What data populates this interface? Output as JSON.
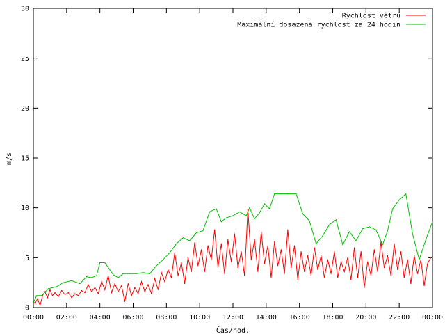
{
  "chart_data": {
    "type": "line",
    "title": "",
    "xlabel": "Čas/hod.",
    "ylabel": "m/s",
    "ylim": [
      0,
      30
    ],
    "yticks": [
      0,
      5,
      10,
      15,
      20,
      25,
      30
    ],
    "xlim": [
      0,
      24
    ],
    "xticks": [
      {
        "value": 0,
        "label": "00:00"
      },
      {
        "value": 2,
        "label": "02:00"
      },
      {
        "value": 4,
        "label": "04:00"
      },
      {
        "value": 6,
        "label": "06:00"
      },
      {
        "value": 8,
        "label": "08:00"
      },
      {
        "value": 10,
        "label": "10:00"
      },
      {
        "value": 12,
        "label": "12:00"
      },
      {
        "value": 14,
        "label": "14:00"
      },
      {
        "value": 16,
        "label": "16:00"
      },
      {
        "value": 18,
        "label": "18:00"
      },
      {
        "value": 20,
        "label": "20:00"
      },
      {
        "value": 22,
        "label": "22:00"
      },
      {
        "value": 24,
        "label": "00:00"
      }
    ],
    "grid": false,
    "legend_position": "top-right",
    "series": [
      {
        "name": "Rychlost větru",
        "color": "#ff0000",
        "x": [
          0,
          0.1,
          0.25,
          0.4,
          0.55,
          0.7,
          0.85,
          1.0,
          1.15,
          1.3,
          1.5,
          1.7,
          1.9,
          2.1,
          2.3,
          2.5,
          2.7,
          2.9,
          3.1,
          3.3,
          3.5,
          3.7,
          3.9,
          4.1,
          4.3,
          4.5,
          4.7,
          4.9,
          5.1,
          5.3,
          5.5,
          5.7,
          5.9,
          6.1,
          6.3,
          6.5,
          6.7,
          6.9,
          7.1,
          7.3,
          7.5,
          7.7,
          7.9,
          8.1,
          8.3,
          8.5,
          8.7,
          8.9,
          9.1,
          9.3,
          9.5,
          9.7,
          9.9,
          10.1,
          10.3,
          10.5,
          10.7,
          10.9,
          11.1,
          11.3,
          11.5,
          11.7,
          11.9,
          12.1,
          12.3,
          12.5,
          12.7,
          12.9,
          13.1,
          13.3,
          13.5,
          13.7,
          13.9,
          14.1,
          14.3,
          14.5,
          14.7,
          14.9,
          15.1,
          15.3,
          15.5,
          15.7,
          15.9,
          16.1,
          16.3,
          16.5,
          16.7,
          16.9,
          17.1,
          17.3,
          17.5,
          17.7,
          17.9,
          18.1,
          18.3,
          18.5,
          18.7,
          18.9,
          19.1,
          19.3,
          19.5,
          19.7,
          19.9,
          20.1,
          20.3,
          20.5,
          20.7,
          20.9,
          21.1,
          21.3,
          21.5,
          21.7,
          21.9,
          22.1,
          22.3,
          22.5,
          22.7,
          22.9,
          23.1,
          23.3,
          23.5,
          23.7,
          23.9
        ],
        "values": [
          0.6,
          0.4,
          0.9,
          0.2,
          1.2,
          1.6,
          1.0,
          1.8,
          1.2,
          1.5,
          1.1,
          1.7,
          1.3,
          1.5,
          1.0,
          1.4,
          1.2,
          1.7,
          1.5,
          2.3,
          1.6,
          2.0,
          1.4,
          2.6,
          1.8,
          3.2,
          1.5,
          2.4,
          1.6,
          2.2,
          0.6,
          2.4,
          1.2,
          2.0,
          1.4,
          2.6,
          1.6,
          2.3,
          1.4,
          2.9,
          1.8,
          3.5,
          2.6,
          3.8,
          3.0,
          5.5,
          3.2,
          4.5,
          2.4,
          5.0,
          3.6,
          6.5,
          4.2,
          5.8,
          3.6,
          6.2,
          4.8,
          7.8,
          4.0,
          6.4,
          3.4,
          6.8,
          4.6,
          7.4,
          4.0,
          5.6,
          3.2,
          9.8,
          4.8,
          6.8,
          3.6,
          7.6,
          4.4,
          6.2,
          3.0,
          6.6,
          4.2,
          5.8,
          3.4,
          7.8,
          4.0,
          6.2,
          2.8,
          5.6,
          3.6,
          5.2,
          3.2,
          6.0,
          3.8,
          5.2,
          3.0,
          4.8,
          3.4,
          5.6,
          3.0,
          4.6,
          3.6,
          5.0,
          2.8,
          6.0,
          3.0,
          5.6,
          2.0,
          4.6,
          3.2,
          5.8,
          3.6,
          6.6,
          4.0,
          5.2,
          3.2,
          6.4,
          3.8,
          5.6,
          3.0,
          4.8,
          2.4,
          5.2,
          3.4,
          4.8,
          2.2,
          4.4,
          5.0
        ]
      },
      {
        "name": "Maximální dosazená rychlost za 24 hodin",
        "color": "#00c000",
        "x": [
          0,
          0.2,
          0.5,
          0.9,
          1.4,
          1.8,
          2.3,
          2.8,
          3.2,
          3.5,
          3.8,
          4.0,
          4.3,
          4.8,
          5.1,
          5.4,
          5.8,
          6.2,
          6.6,
          7.0,
          7.4,
          7.8,
          8.2,
          8.6,
          9.0,
          9.4,
          9.8,
          10.2,
          10.6,
          11.0,
          11.3,
          11.6,
          12.0,
          12.4,
          12.8,
          13.0,
          13.3,
          13.6,
          13.9,
          14.2,
          14.5,
          14.9,
          15.3,
          15.8,
          16.2,
          16.6,
          17.0,
          17.4,
          17.8,
          18.2,
          18.6,
          19.0,
          19.4,
          19.8,
          20.2,
          20.6,
          21.0,
          21.3,
          21.6,
          22.0,
          22.4,
          22.8,
          23.2,
          23.6,
          24.0
        ],
        "values": [
          0.5,
          1.2,
          1.2,
          1.9,
          2.1,
          2.5,
          2.7,
          2.4,
          3.1,
          3.0,
          3.2,
          4.5,
          4.5,
          3.3,
          3.0,
          3.4,
          3.4,
          3.4,
          3.5,
          3.4,
          4.2,
          4.8,
          5.5,
          6.4,
          7.0,
          6.7,
          7.5,
          7.7,
          9.6,
          9.9,
          8.6,
          9.0,
          9.2,
          9.6,
          9.2,
          10.0,
          8.9,
          9.5,
          10.4,
          9.9,
          11.4,
          11.4,
          11.4,
          11.4,
          9.4,
          8.7,
          6.4,
          7.2,
          8.3,
          8.8,
          6.3,
          7.6,
          6.7,
          7.9,
          8.1,
          7.8,
          6.3,
          7.7,
          9.9,
          10.8,
          11.4,
          7.4,
          4.8,
          6.8,
          8.6
        ]
      }
    ]
  }
}
